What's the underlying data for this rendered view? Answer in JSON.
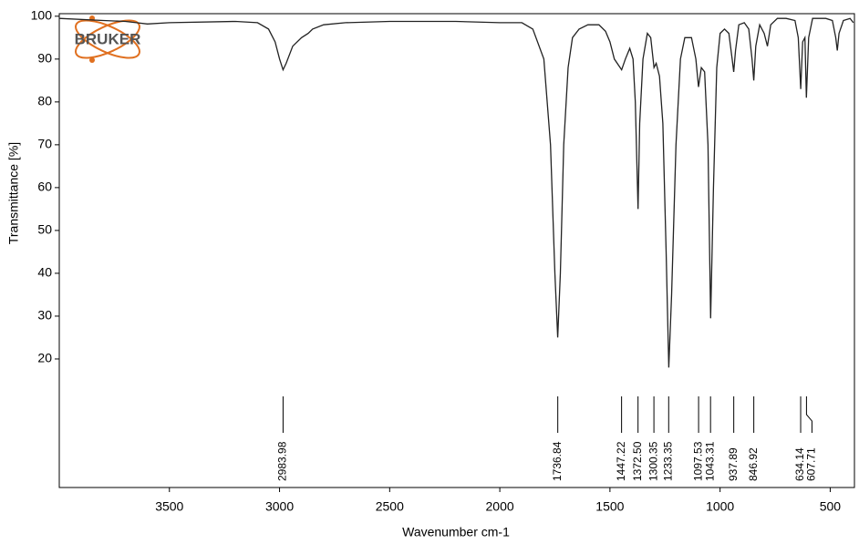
{
  "chart_data": {
    "type": "line",
    "logo": "BRUKER",
    "xlabel": "Wavenumber cm-1",
    "ylabel": "Transmittance [%]",
    "xlim": [
      4000,
      390
    ],
    "ylim": [
      -10,
      100.6
    ],
    "xticks": [
      3500,
      3000,
      2500,
      2000,
      1500,
      1000,
      500
    ],
    "yticks": [
      20,
      30,
      40,
      50,
      60,
      70,
      80,
      90,
      100
    ],
    "peaks": [
      2983.98,
      1736.84,
      1447.22,
      1372.5,
      1300.35,
      1233.35,
      1097.53,
      1043.31,
      937.89,
      846.92,
      634.14,
      607.71
    ],
    "peak_labels": [
      "2983.98",
      "1736.84",
      "1447.22",
      "1372.50",
      "1300.35",
      "1233.35",
      "1097.53",
      "1043.31",
      "937.89",
      "846.92",
      "634.14",
      "607.71"
    ],
    "series": [
      {
        "color": "#222222",
        "x": [
          4000,
          3800,
          3700,
          3650,
          3600,
          3500,
          3200,
          3100,
          3050,
          3020,
          3000,
          2984,
          2970,
          2940,
          2900,
          2870,
          2850,
          2800,
          2700,
          2500,
          2200,
          2000,
          1900,
          1850,
          1800,
          1770,
          1750,
          1737,
          1725,
          1710,
          1690,
          1670,
          1640,
          1600,
          1550,
          1520,
          1500,
          1480,
          1460,
          1447,
          1430,
          1410,
          1395,
          1385,
          1372.5,
          1365,
          1350,
          1330,
          1315,
          1300,
          1290,
          1275,
          1260,
          1245,
          1233,
          1220,
          1200,
          1180,
          1160,
          1130,
          1110,
          1098,
          1085,
          1070,
          1055,
          1043,
          1030,
          1015,
          1000,
          980,
          960,
          945,
          938,
          930,
          915,
          890,
          870,
          855,
          847,
          838,
          820,
          800,
          785,
          770,
          740,
          700,
          660,
          645,
          634,
          625,
          615,
          608,
          598,
          580,
          520,
          490,
          475,
          468,
          460,
          440,
          410,
          395
        ],
        "values": [
          99.5,
          99,
          98.8,
          98.5,
          98.2,
          98.5,
          98.8,
          98.5,
          97,
          94,
          90,
          87.5,
          89,
          93,
          95,
          96,
          97,
          98,
          98.5,
          98.8,
          98.8,
          98.5,
          98.5,
          97,
          90,
          70,
          40,
          25,
          40,
          70,
          88,
          95,
          97,
          98,
          98,
          96.5,
          94,
          90,
          88.5,
          87.5,
          90,
          92.5,
          90,
          80,
          55,
          75,
          90,
          96,
          95,
          88,
          89,
          86,
          75,
          45,
          18,
          35,
          70,
          90,
          95,
          95,
          90,
          83.5,
          88,
          87,
          70,
          29.5,
          60,
          88,
          96,
          97,
          96,
          90,
          87,
          92,
          98,
          98.5,
          97,
          90,
          85,
          93,
          98,
          96,
          93,
          98,
          99.5,
          99.5,
          99,
          95,
          83,
          94,
          95,
          81,
          95,
          99.5,
          99.5,
          99,
          95,
          92,
          96,
          99,
          99.5,
          98.5
        ]
      }
    ]
  }
}
